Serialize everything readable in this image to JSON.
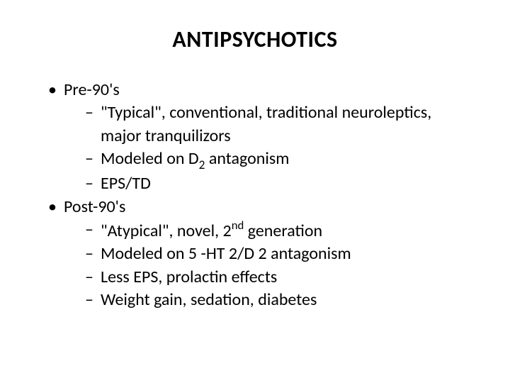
{
  "title": "ANTIPSYCHOTICS",
  "title_fontsize": 32,
  "body_fontsize": 24,
  "text_color": "#000000",
  "background_color": "#ffffff",
  "bullets": {
    "pre90s": {
      "label": "Pre-90's",
      "items": {
        "a_pre": "\"Typical\", conventional, traditional neuroleptics, major tranquilizors",
        "b_pre": "Modeled on D",
        "b_sub": "2",
        "b_post": " antagonism",
        "c": "EPS/TD"
      }
    },
    "post90s": {
      "label": "Post-90's",
      "items": {
        "a_pre": "\"Atypical\", novel, 2",
        "a_sup": "nd",
        "a_post": " generation",
        "b": "Modeled on 5 -HT 2/D 2 antagonism",
        "c": "Less EPS, prolactin effects",
        "d": "Weight gain, sedation, diabetes"
      }
    }
  }
}
